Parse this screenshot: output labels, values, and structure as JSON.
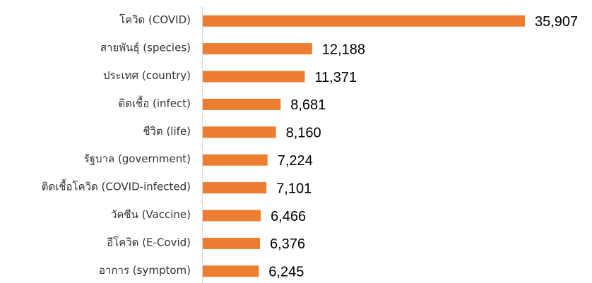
{
  "chart_data": {
    "type": "bar",
    "orientation": "horizontal",
    "categories": [
      "โควิด (COVID)",
      "สายพันธุ์ (species)",
      "ประเทศ (country)",
      "ติดเชื้อ (infect)",
      "ชีวิต (life)",
      "รัฐบาล (government)",
      "ติดเชื้อโควิด (COVID-infected)",
      "วัคซีน (Vaccine)",
      "อีโควิด (E-Covid)",
      "อาการ (symptom)"
    ],
    "values": [
      35907,
      12188,
      11371,
      8681,
      8160,
      7224,
      7101,
      6466,
      6376,
      6245
    ],
    "value_labels": [
      "35,907",
      "12,188",
      "11,371",
      "8,681",
      "8,160",
      "7,224",
      "7,101",
      "6,466",
      "6,376",
      "6,245"
    ],
    "color": "#ed7d31"
  }
}
